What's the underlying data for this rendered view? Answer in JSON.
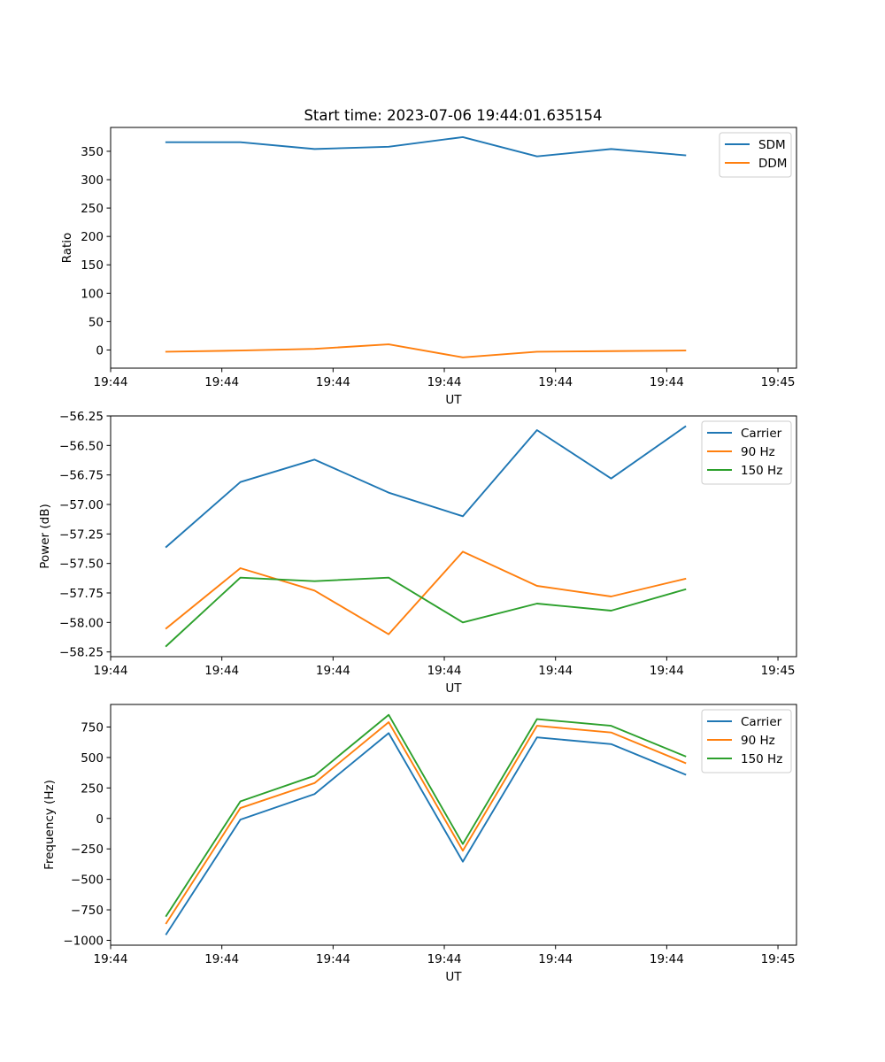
{
  "figure_title": "Start time: 2023-07-06 19:44:01.635154",
  "colors": {
    "blue": "#1f77b4",
    "orange": "#ff7f0e",
    "green": "#2ca02c"
  },
  "chart_data": [
    {
      "type": "line",
      "name": "ratio-chart",
      "title": "Start time: 2023-07-06 19:44:01.635154",
      "xlabel": "UT",
      "ylabel": "Ratio",
      "xlim": [
        -0.75,
        8.5
      ],
      "ylim": [
        -32,
        392
      ],
      "x": [
        0,
        1,
        2,
        3,
        4,
        5,
        6,
        7
      ],
      "x_ticks": [
        -0.75,
        0.75,
        2.25,
        3.75,
        5.25,
        6.75,
        8.25
      ],
      "x_tick_labels": [
        "19:44",
        "19:44",
        "19:44",
        "19:44",
        "19:44",
        "19:44",
        "19:45"
      ],
      "y_ticks": [
        0,
        50,
        100,
        150,
        200,
        250,
        300,
        350
      ],
      "y_tick_labels": [
        "0",
        "50",
        "100",
        "150",
        "200",
        "250",
        "300",
        "350"
      ],
      "legend": "top-right",
      "series": [
        {
          "name": "SDM",
          "color": "#1f77b4",
          "values": [
            366,
            366,
            354,
            358,
            375,
            341,
            354,
            343
          ]
        },
        {
          "name": "DDM",
          "color": "#ff7f0e",
          "values": [
            -3,
            -1,
            2,
            10,
            -13,
            -3,
            -2,
            -1
          ]
        }
      ]
    },
    {
      "type": "line",
      "name": "power-chart",
      "title": "",
      "xlabel": "UT",
      "ylabel": "Power (dB)",
      "xlim": [
        -0.75,
        8.5
      ],
      "ylim": [
        -58.29,
        -56.25
      ],
      "x": [
        0,
        1,
        2,
        3,
        4,
        5,
        6,
        7
      ],
      "x_ticks": [
        -0.75,
        0.75,
        2.25,
        3.75,
        5.25,
        6.75,
        8.25
      ],
      "x_tick_labels": [
        "19:44",
        "19:44",
        "19:44",
        "19:44",
        "19:44",
        "19:44",
        "19:45"
      ],
      "y_ticks": [
        -58.25,
        -58.0,
        -57.75,
        -57.5,
        -57.25,
        -57.0,
        -56.75,
        -56.5,
        -56.25
      ],
      "y_tick_labels": [
        "−58.25",
        "−58.00",
        "−57.75",
        "−57.50",
        "−57.25",
        "−57.00",
        "−56.75",
        "−56.50",
        "−56.25"
      ],
      "legend": "top-right",
      "series": [
        {
          "name": "Carrier",
          "color": "#1f77b4",
          "values": [
            -57.36,
            -56.81,
            -56.62,
            -56.9,
            -57.1,
            -56.37,
            -56.78,
            -56.34
          ]
        },
        {
          "name": "90 Hz",
          "color": "#ff7f0e",
          "values": [
            -58.05,
            -57.54,
            -57.73,
            -58.1,
            -57.4,
            -57.69,
            -57.78,
            -57.63
          ]
        },
        {
          "name": "150 Hz",
          "color": "#2ca02c",
          "values": [
            -58.2,
            -57.62,
            -57.65,
            -57.62,
            -58.0,
            -57.84,
            -57.9,
            -57.72
          ]
        }
      ]
    },
    {
      "type": "line",
      "name": "frequency-chart",
      "title": "",
      "xlabel": "UT",
      "ylabel": "Frequency (Hz)",
      "xlim": [
        -0.75,
        8.5
      ],
      "ylim": [
        -1040,
        935
      ],
      "x": [
        0,
        1,
        2,
        3,
        4,
        5,
        6,
        7
      ],
      "x_ticks": [
        -0.75,
        0.75,
        2.25,
        3.75,
        5.25,
        6.75,
        8.25
      ],
      "x_tick_labels": [
        "19:44",
        "19:44",
        "19:44",
        "19:44",
        "19:44",
        "19:44",
        "19:45"
      ],
      "y_ticks": [
        -1000,
        -750,
        -500,
        -250,
        0,
        250,
        500,
        750
      ],
      "y_tick_labels": [
        "−1000",
        "−750",
        "−500",
        "−250",
        "0",
        "250",
        "500",
        "750"
      ],
      "legend": "top-right",
      "series": [
        {
          "name": "Carrier",
          "color": "#1f77b4",
          "values": [
            -950,
            -10,
            200,
            700,
            -355,
            665,
            610,
            360
          ]
        },
        {
          "name": "90 Hz",
          "color": "#ff7f0e",
          "values": [
            -860,
            85,
            290,
            790,
            -265,
            760,
            705,
            455
          ]
        },
        {
          "name": "150 Hz",
          "color": "#2ca02c",
          "values": [
            -800,
            140,
            350,
            850,
            -210,
            815,
            760,
            510
          ]
        }
      ]
    }
  ]
}
